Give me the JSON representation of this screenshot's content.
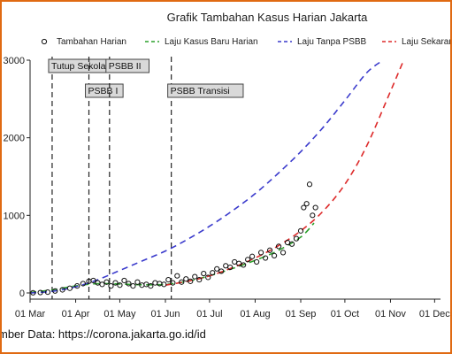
{
  "chart_data": {
    "type": "scatter",
    "title": "Grafik Tambahan Kasus Harian Jakarta",
    "xlabel": "",
    "ylabel": "",
    "x_ticks": [
      "01 Mar",
      "01 Apr",
      "01 May",
      "01 Jun",
      "01 Jul",
      "01 Aug",
      "01 Sep",
      "01 Oct",
      "01 Nov",
      "01 Dec"
    ],
    "y_ticks": [
      "0",
      "1000",
      "2000",
      "3000"
    ],
    "xlim": [
      "2020-03-01",
      "2020-12-05"
    ],
    "ylim": [
      -80,
      3000
    ],
    "grid": false,
    "legend_position": "top",
    "series": [
      {
        "name": "Tambahan Harian",
        "kind": "markers",
        "color": "#111111",
        "x": [
          "2020-03-03",
          "2020-03-08",
          "2020-03-13",
          "2020-03-18",
          "2020-03-23",
          "2020-03-28",
          "2020-04-02",
          "2020-04-06",
          "2020-04-10",
          "2020-04-13",
          "2020-04-16",
          "2020-04-19",
          "2020-04-22",
          "2020-04-25",
          "2020-04-28",
          "2020-05-01",
          "2020-05-04",
          "2020-05-07",
          "2020-05-10",
          "2020-05-13",
          "2020-05-16",
          "2020-05-19",
          "2020-05-22",
          "2020-05-25",
          "2020-05-28",
          "2020-05-31",
          "2020-06-03",
          "2020-06-06",
          "2020-06-09",
          "2020-06-12",
          "2020-06-15",
          "2020-06-18",
          "2020-06-21",
          "2020-06-24",
          "2020-06-27",
          "2020-06-30",
          "2020-07-03",
          "2020-07-06",
          "2020-07-09",
          "2020-07-12",
          "2020-07-15",
          "2020-07-18",
          "2020-07-21",
          "2020-07-24",
          "2020-07-27",
          "2020-07-30",
          "2020-08-02",
          "2020-08-05",
          "2020-08-08",
          "2020-08-11",
          "2020-08-14",
          "2020-08-17",
          "2020-08-20",
          "2020-08-23",
          "2020-08-26",
          "2020-08-29",
          "2020-09-01",
          "2020-09-03",
          "2020-09-05",
          "2020-09-07",
          "2020-09-09",
          "2020-09-11"
        ],
        "y": [
          2,
          5,
          10,
          25,
          40,
          60,
          90,
          120,
          150,
          160,
          130,
          110,
          140,
          90,
          130,
          100,
          160,
          120,
          90,
          140,
          100,
          110,
          90,
          130,
          120,
          110,
          170,
          130,
          220,
          140,
          180,
          150,
          210,
          170,
          250,
          200,
          260,
          310,
          280,
          350,
          330,
          400,
          380,
          360,
          430,
          470,
          400,
          520,
          450,
          550,
          480,
          600,
          520,
          650,
          630,
          700,
          800,
          1100,
          1150,
          1400,
          1000,
          1100
        ]
      },
      {
        "name": "Laju Kasus Baru Harian",
        "kind": "dashed-line",
        "color": "#2ca02c",
        "x": [
          "2020-03-01",
          "2020-03-16",
          "2020-04-01",
          "2020-04-16",
          "2020-05-01",
          "2020-05-16",
          "2020-06-01",
          "2020-06-16",
          "2020-07-01",
          "2020-07-16",
          "2020-08-01",
          "2020-08-16",
          "2020-09-01",
          "2020-09-10"
        ],
        "y": [
          5,
          40,
          90,
          120,
          115,
          105,
          110,
          150,
          220,
          310,
          420,
          540,
          720,
          900
        ]
      },
      {
        "name": "Laju Tanpa PSBB",
        "kind": "dashed-line",
        "color": "#3a3acc",
        "x": [
          "2020-03-01",
          "2020-03-16",
          "2020-04-01",
          "2020-04-16",
          "2020-05-01",
          "2020-05-16",
          "2020-06-01",
          "2020-06-16",
          "2020-07-01",
          "2020-07-16",
          "2020-08-01",
          "2020-08-16",
          "2020-09-01",
          "2020-09-16",
          "2020-10-01",
          "2020-10-16",
          "2020-10-27"
        ],
        "y": [
          0,
          20,
          80,
          170,
          290,
          410,
          540,
          690,
          860,
          1050,
          1280,
          1530,
          1820,
          2130,
          2480,
          2840,
          3000
        ]
      },
      {
        "name": "Laju Sekarang",
        "kind": "dashed-line",
        "color": "#dd2a2a",
        "x": [
          "2020-06-01",
          "2020-06-16",
          "2020-07-01",
          "2020-07-16",
          "2020-08-01",
          "2020-08-16",
          "2020-09-01",
          "2020-09-16",
          "2020-10-01",
          "2020-10-16",
          "2020-11-01",
          "2020-11-10"
        ],
        "y": [
          100,
          150,
          220,
          320,
          450,
          600,
          800,
          1050,
          1400,
          1900,
          2600,
          3000
        ]
      }
    ],
    "vlines": [
      {
        "label": "Tutup Sekolah",
        "x": "2020-03-16",
        "label_row": 1
      },
      {
        "label": "PSBB I",
        "x": "2020-04-10",
        "label_row": 2
      },
      {
        "label": "PSBB II",
        "x": "2020-04-24",
        "label_row": 1
      },
      {
        "label": "PSBB Transisi",
        "x": "2020-06-05",
        "label_row": 2
      }
    ]
  },
  "source_text": "mber Data: https://corona.jakarta.go.id/id"
}
